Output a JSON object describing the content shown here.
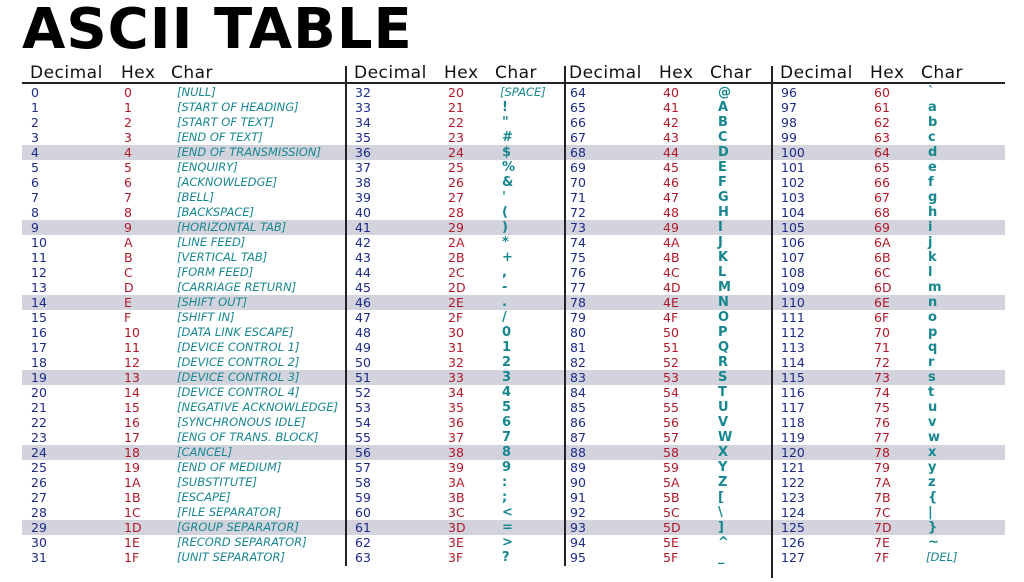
{
  "title": "ASCII TABLE",
  "headers": {
    "decimal": "Decimal",
    "hex": "Hex",
    "char": "Char"
  },
  "columns": [
    {
      "rows": [
        {
          "dec": "0",
          "hex": "0",
          "char": "[NULL]"
        },
        {
          "dec": "1",
          "hex": "1",
          "char": "[START OF HEADING]"
        },
        {
          "dec": "2",
          "hex": "2",
          "char": "[START OF TEXT]"
        },
        {
          "dec": "3",
          "hex": "3",
          "char": "[END OF TEXT]"
        },
        {
          "dec": "4",
          "hex": "4",
          "char": "[END OF TRANSMISSION]"
        },
        {
          "dec": "5",
          "hex": "5",
          "char": "[ENQUIRY]"
        },
        {
          "dec": "6",
          "hex": "6",
          "char": "[ACKNOWLEDGE]"
        },
        {
          "dec": "7",
          "hex": "7",
          "char": "[BELL]"
        },
        {
          "dec": "8",
          "hex": "8",
          "char": "[BACKSPACE]"
        },
        {
          "dec": "9",
          "hex": "9",
          "char": "[HORIZONTAL TAB]"
        },
        {
          "dec": "10",
          "hex": "A",
          "char": "[LINE FEED]"
        },
        {
          "dec": "11",
          "hex": "B",
          "char": "[VERTICAL TAB]"
        },
        {
          "dec": "12",
          "hex": "C",
          "char": "[FORM FEED]"
        },
        {
          "dec": "13",
          "hex": "D",
          "char": "[CARRIAGE RETURN]"
        },
        {
          "dec": "14",
          "hex": "E",
          "char": "[SHIFT OUT]"
        },
        {
          "dec": "15",
          "hex": "F",
          "char": "[SHIFT IN]"
        },
        {
          "dec": "16",
          "hex": "10",
          "char": "[DATA LINK ESCAPE]"
        },
        {
          "dec": "17",
          "hex": "11",
          "char": "[DEVICE CONTROL 1]"
        },
        {
          "dec": "18",
          "hex": "12",
          "char": "[DEVICE CONTROL 2]"
        },
        {
          "dec": "19",
          "hex": "13",
          "char": "[DEVICE CONTROL 3]"
        },
        {
          "dec": "20",
          "hex": "14",
          "char": "[DEVICE CONTROL 4]"
        },
        {
          "dec": "21",
          "hex": "15",
          "char": "[NEGATIVE ACKNOWLEDGE]"
        },
        {
          "dec": "22",
          "hex": "16",
          "char": "[SYNCHRONOUS IDLE]"
        },
        {
          "dec": "23",
          "hex": "17",
          "char": "[ENG OF TRANS. BLOCK]"
        },
        {
          "dec": "24",
          "hex": "18",
          "char": "[CANCEL]"
        },
        {
          "dec": "25",
          "hex": "19",
          "char": "[END OF MEDIUM]"
        },
        {
          "dec": "26",
          "hex": "1A",
          "char": "[SUBSTITUTE]"
        },
        {
          "dec": "27",
          "hex": "1B",
          "char": "[ESCAPE]"
        },
        {
          "dec": "28",
          "hex": "1C",
          "char": "[FILE SEPARATOR]"
        },
        {
          "dec": "29",
          "hex": "1D",
          "char": "[GROUP SEPARATOR]"
        },
        {
          "dec": "30",
          "hex": "1E",
          "char": "[RECORD SEPARATOR]"
        },
        {
          "dec": "31",
          "hex": "1F",
          "char": "[UNIT SEPARATOR]"
        }
      ]
    },
    {
      "rows": [
        {
          "dec": "32",
          "hex": "20",
          "char": "[SPACE]"
        },
        {
          "dec": "33",
          "hex": "21",
          "char": "!"
        },
        {
          "dec": "34",
          "hex": "22",
          "char": "\""
        },
        {
          "dec": "35",
          "hex": "23",
          "char": "#"
        },
        {
          "dec": "36",
          "hex": "24",
          "char": "$"
        },
        {
          "dec": "37",
          "hex": "25",
          "char": "%"
        },
        {
          "dec": "38",
          "hex": "26",
          "char": "&"
        },
        {
          "dec": "39",
          "hex": "27",
          "char": "'"
        },
        {
          "dec": "40",
          "hex": "28",
          "char": "("
        },
        {
          "dec": "41",
          "hex": "29",
          "char": ")"
        },
        {
          "dec": "42",
          "hex": "2A",
          "char": "*"
        },
        {
          "dec": "43",
          "hex": "2B",
          "char": "+"
        },
        {
          "dec": "44",
          "hex": "2C",
          "char": ","
        },
        {
          "dec": "45",
          "hex": "2D",
          "char": "-"
        },
        {
          "dec": "46",
          "hex": "2E",
          "char": "."
        },
        {
          "dec": "47",
          "hex": "2F",
          "char": "/"
        },
        {
          "dec": "48",
          "hex": "30",
          "char": "0"
        },
        {
          "dec": "49",
          "hex": "31",
          "char": "1"
        },
        {
          "dec": "50",
          "hex": "32",
          "char": "2"
        },
        {
          "dec": "51",
          "hex": "33",
          "char": "3"
        },
        {
          "dec": "52",
          "hex": "34",
          "char": "4"
        },
        {
          "dec": "53",
          "hex": "35",
          "char": "5"
        },
        {
          "dec": "54",
          "hex": "36",
          "char": "6"
        },
        {
          "dec": "55",
          "hex": "37",
          "char": "7"
        },
        {
          "dec": "56",
          "hex": "38",
          "char": "8"
        },
        {
          "dec": "57",
          "hex": "39",
          "char": "9"
        },
        {
          "dec": "58",
          "hex": "3A",
          "char": ":"
        },
        {
          "dec": "59",
          "hex": "3B",
          "char": ";"
        },
        {
          "dec": "60",
          "hex": "3C",
          "char": "<"
        },
        {
          "dec": "61",
          "hex": "3D",
          "char": "="
        },
        {
          "dec": "62",
          "hex": "3E",
          "char": ">"
        },
        {
          "dec": "63",
          "hex": "3F",
          "char": "?"
        }
      ]
    },
    {
      "rows": [
        {
          "dec": "64",
          "hex": "40",
          "char": "@"
        },
        {
          "dec": "65",
          "hex": "41",
          "char": "A"
        },
        {
          "dec": "66",
          "hex": "42",
          "char": "B"
        },
        {
          "dec": "67",
          "hex": "43",
          "char": "C"
        },
        {
          "dec": "68",
          "hex": "44",
          "char": "D"
        },
        {
          "dec": "69",
          "hex": "45",
          "char": "E"
        },
        {
          "dec": "70",
          "hex": "46",
          "char": "F"
        },
        {
          "dec": "71",
          "hex": "47",
          "char": "G"
        },
        {
          "dec": "72",
          "hex": "48",
          "char": "H"
        },
        {
          "dec": "73",
          "hex": "49",
          "char": "I"
        },
        {
          "dec": "74",
          "hex": "4A",
          "char": "J"
        },
        {
          "dec": "75",
          "hex": "4B",
          "char": "K"
        },
        {
          "dec": "76",
          "hex": "4C",
          "char": "L"
        },
        {
          "dec": "77",
          "hex": "4D",
          "char": "M"
        },
        {
          "dec": "78",
          "hex": "4E",
          "char": "N"
        },
        {
          "dec": "79",
          "hex": "4F",
          "char": "O"
        },
        {
          "dec": "80",
          "hex": "50",
          "char": "P"
        },
        {
          "dec": "81",
          "hex": "51",
          "char": "Q"
        },
        {
          "dec": "82",
          "hex": "52",
          "char": "R"
        },
        {
          "dec": "83",
          "hex": "53",
          "char": "S"
        },
        {
          "dec": "84",
          "hex": "54",
          "char": "T"
        },
        {
          "dec": "85",
          "hex": "55",
          "char": "U"
        },
        {
          "dec": "86",
          "hex": "56",
          "char": "V"
        },
        {
          "dec": "87",
          "hex": "57",
          "char": "W"
        },
        {
          "dec": "88",
          "hex": "58",
          "char": "X"
        },
        {
          "dec": "89",
          "hex": "59",
          "char": "Y"
        },
        {
          "dec": "90",
          "hex": "5A",
          "char": "Z"
        },
        {
          "dec": "91",
          "hex": "5B",
          "char": "["
        },
        {
          "dec": "92",
          "hex": "5C",
          "char": "\\"
        },
        {
          "dec": "93",
          "hex": "5D",
          "char": "]"
        },
        {
          "dec": "94",
          "hex": "5E",
          "char": "^"
        },
        {
          "dec": "95",
          "hex": "5F",
          "char": "_"
        }
      ]
    },
    {
      "rows": [
        {
          "dec": "96",
          "hex": "60",
          "char": "`"
        },
        {
          "dec": "97",
          "hex": "61",
          "char": "a"
        },
        {
          "dec": "98",
          "hex": "62",
          "char": "b"
        },
        {
          "dec": "99",
          "hex": "63",
          "char": "c"
        },
        {
          "dec": "100",
          "hex": "64",
          "char": "d"
        },
        {
          "dec": "101",
          "hex": "65",
          "char": "e"
        },
        {
          "dec": "102",
          "hex": "66",
          "char": "f"
        },
        {
          "dec": "103",
          "hex": "67",
          "char": "g"
        },
        {
          "dec": "104",
          "hex": "68",
          "char": "h"
        },
        {
          "dec": "105",
          "hex": "69",
          "char": "i"
        },
        {
          "dec": "106",
          "hex": "6A",
          "char": "j"
        },
        {
          "dec": "107",
          "hex": "6B",
          "char": "k"
        },
        {
          "dec": "108",
          "hex": "6C",
          "char": "l"
        },
        {
          "dec": "109",
          "hex": "6D",
          "char": "m"
        },
        {
          "dec": "110",
          "hex": "6E",
          "char": "n"
        },
        {
          "dec": "111",
          "hex": "6F",
          "char": "o"
        },
        {
          "dec": "112",
          "hex": "70",
          "char": "p"
        },
        {
          "dec": "113",
          "hex": "71",
          "char": "q"
        },
        {
          "dec": "114",
          "hex": "72",
          "char": "r"
        },
        {
          "dec": "115",
          "hex": "73",
          "char": "s"
        },
        {
          "dec": "116",
          "hex": "74",
          "char": "t"
        },
        {
          "dec": "117",
          "hex": "75",
          "char": "u"
        },
        {
          "dec": "118",
          "hex": "76",
          "char": "v"
        },
        {
          "dec": "119",
          "hex": "77",
          "char": "w"
        },
        {
          "dec": "120",
          "hex": "78",
          "char": "x"
        },
        {
          "dec": "121",
          "hex": "79",
          "char": "y"
        },
        {
          "dec": "122",
          "hex": "7A",
          "char": "z"
        },
        {
          "dec": "123",
          "hex": "7B",
          "char": "{"
        },
        {
          "dec": "124",
          "hex": "7C",
          "char": "|"
        },
        {
          "dec": "125",
          "hex": "7D",
          "char": "}"
        },
        {
          "dec": "126",
          "hex": "7E",
          "char": "~"
        },
        {
          "dec": "127",
          "hex": "7F",
          "char": "[DEL]"
        }
      ]
    }
  ],
  "colors": {
    "decimal": "#1d2a86",
    "hex": "#b0182a",
    "char": "#17878f",
    "band": "#d3d3de"
  }
}
